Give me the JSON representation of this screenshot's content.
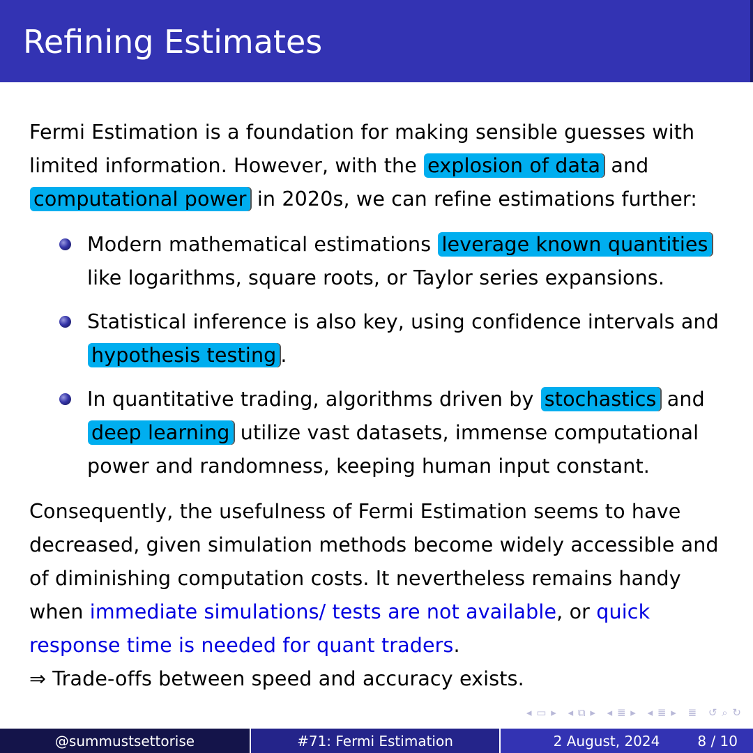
{
  "slide": {
    "title": "Refining Estimates",
    "intro": {
      "t1": "Fermi Estimation is a foundation for making sensible guesses with limited information. However, with the",
      "h1": "explosion of data",
      "t2": "and",
      "h2": "computational power",
      "t3": "in 2020s, we can refine estimations further:"
    },
    "bullets": [
      {
        "t1": "Modern mathematical estimations",
        "h1": "leverage known quantities",
        "t2": "like logarithms, square roots, or Taylor series expansions."
      },
      {
        "t1": "Statistical inference is also key, using confidence intervals and",
        "h1": "hypothesis testing",
        "t2": "."
      },
      {
        "t1": "In quantitative trading, algorithms driven by",
        "h1": "stochastics",
        "t2": "and",
        "h2": "deep learning",
        "t3": "utilize vast datasets, immense computational power and randomness, keeping human input constant."
      }
    ],
    "conclusion": {
      "t1": "Consequently, the usefulness of Fermi Estimation seems to have decreased, given simulation methods become widely accessible and of diminishing computation costs. It nevertheless remains handy when",
      "b1": "immediate simulations/ tests are not available",
      "t2": ", or",
      "b2": "quick response time is needed for quant traders",
      "t3": "."
    },
    "tradeoff": {
      "arrow": "⇒",
      "text": "Trade-offs between speed and accuracy exists."
    }
  },
  "navigation": {
    "icons": [
      "nav-frame-icon",
      "nav-subsection-icon",
      "nav-section-icon",
      "nav-slide-icon",
      "nav-align-icon",
      "nav-search-icon"
    ]
  },
  "footer": {
    "author": "@summustsettorise",
    "title": "#71: Fermi Estimation",
    "date": "2 August, 2024",
    "page": "8 / 10"
  },
  "colors": {
    "title_bar": "#3333b3",
    "highlight": "#00aeef",
    "link_blue": "#0000e0",
    "footer_dark": "#14144a",
    "footer_mid": "#24248a"
  }
}
